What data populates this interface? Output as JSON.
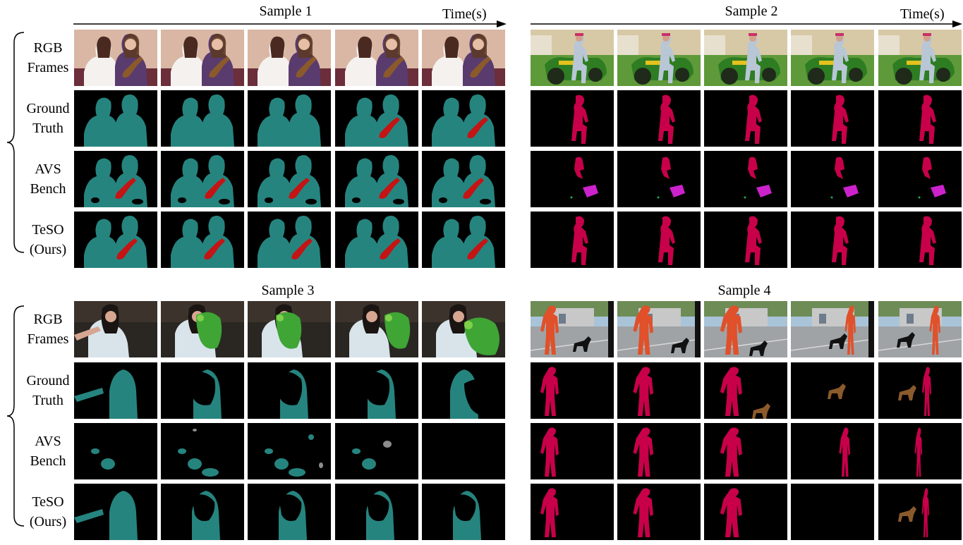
{
  "axis_label": "Time(s)",
  "colors": {
    "background": "#000000",
    "teal_person": "#26847F",
    "crimson_person": "#C8004A",
    "red_instrument": "#C41414",
    "magenta_object": "#CC22CC",
    "brown_dog": "#8B5A2B",
    "gray_bird": "#8C8C8C",
    "green_noise": "#22AA55"
  },
  "row_labels": {
    "rgb": [
      "RGB",
      "Frames"
    ],
    "gt": [
      "Ground",
      "Truth"
    ],
    "avs": [
      "AVS",
      "Bench"
    ],
    "teso": [
      "TeSO",
      "(Ours)"
    ]
  },
  "samples": [
    {
      "title": "Sample 1",
      "scene": "Two girls seated, one playing ukulele",
      "num_frames": 5
    },
    {
      "title": "Sample 2",
      "scene": "Man riding a green lawn tractor",
      "num_frames": 5
    },
    {
      "title": "Sample 3",
      "scene": "Woman with a green parrot",
      "num_frames": 5
    },
    {
      "title": "Sample 4",
      "scene": "Man in orange jersey with a black dog in a parking lot",
      "num_frames": 5
    }
  ]
}
